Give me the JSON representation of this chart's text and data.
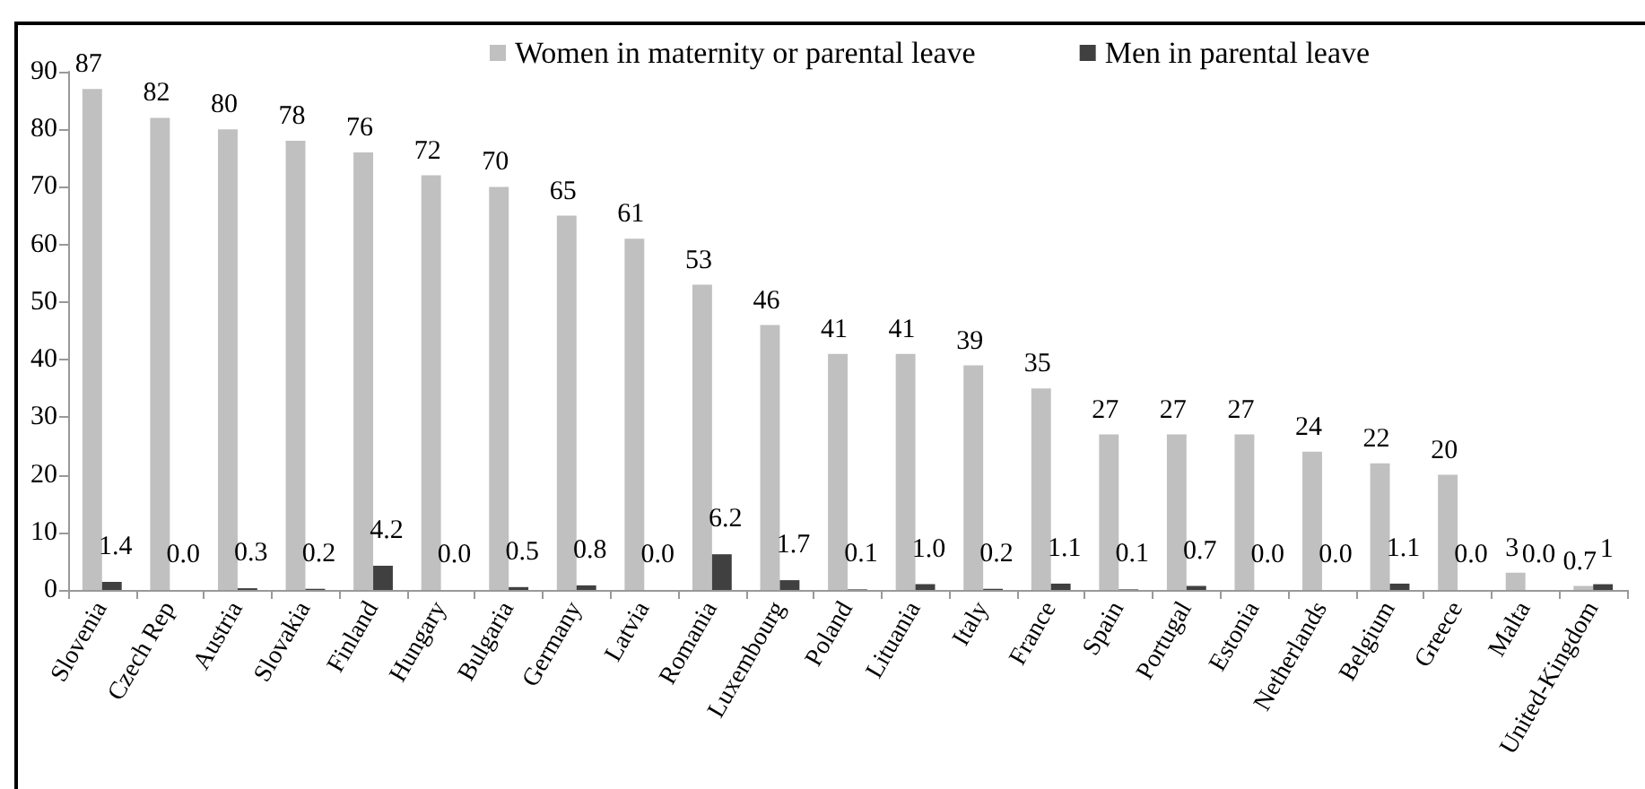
{
  "chart_data": {
    "type": "bar",
    "categories": [
      "Slovenia",
      "Czech Rep",
      "Austria",
      "Slovakia",
      "Finland",
      "Hungary",
      "Bulgaria",
      "Germany",
      "Latvia",
      "Romania",
      "Luxembourg",
      "Poland",
      "Lituania",
      "Italy",
      "France",
      "Spain",
      "Portugal",
      "Estonia",
      "Netherlands",
      "Belgium",
      "Greece",
      "Malta",
      "United-Kingdom"
    ],
    "series": [
      {
        "name": "Women in maternity or parental leave",
        "color": "#c0c0c0",
        "values": [
          87,
          82,
          80,
          78,
          76,
          72,
          70,
          65,
          61,
          53,
          46,
          41,
          41,
          39,
          35,
          27,
          27,
          27,
          24,
          22,
          20,
          3,
          0.7
        ],
        "value_labels": [
          "87",
          "82",
          "80",
          "78",
          "76",
          "72",
          "70",
          "65",
          "61",
          "53",
          "46",
          "41",
          "41",
          "39",
          "35",
          "27",
          "27",
          "27",
          "24",
          "22",
          "20",
          "3",
          "0.7"
        ]
      },
      {
        "name": "Men in parental leave",
        "color": "#404040",
        "values": [
          1.4,
          0.0,
          0.3,
          0.2,
          4.2,
          0.0,
          0.5,
          0.8,
          0.0,
          6.2,
          1.7,
          0.1,
          1.0,
          0.2,
          1.1,
          0.1,
          0.7,
          0.0,
          0.0,
          1.1,
          0.0,
          0.0,
          1
        ],
        "value_labels": [
          "1.4",
          "0.0",
          "0.3",
          "0.2",
          "4.2",
          "0.0",
          "0.5",
          "0.8",
          "0.0",
          "6.2",
          "1.7",
          "0.1",
          "1.0",
          "0.2",
          "1.1",
          "0.1",
          "0.7",
          "0.0",
          "0.0",
          "1.1",
          "0.0",
          "0.0",
          "1"
        ]
      }
    ],
    "ylim": [
      0,
      90
    ],
    "yticks": [
      0,
      10,
      20,
      30,
      40,
      50,
      60,
      70,
      80,
      90
    ],
    "legend": "top"
  }
}
